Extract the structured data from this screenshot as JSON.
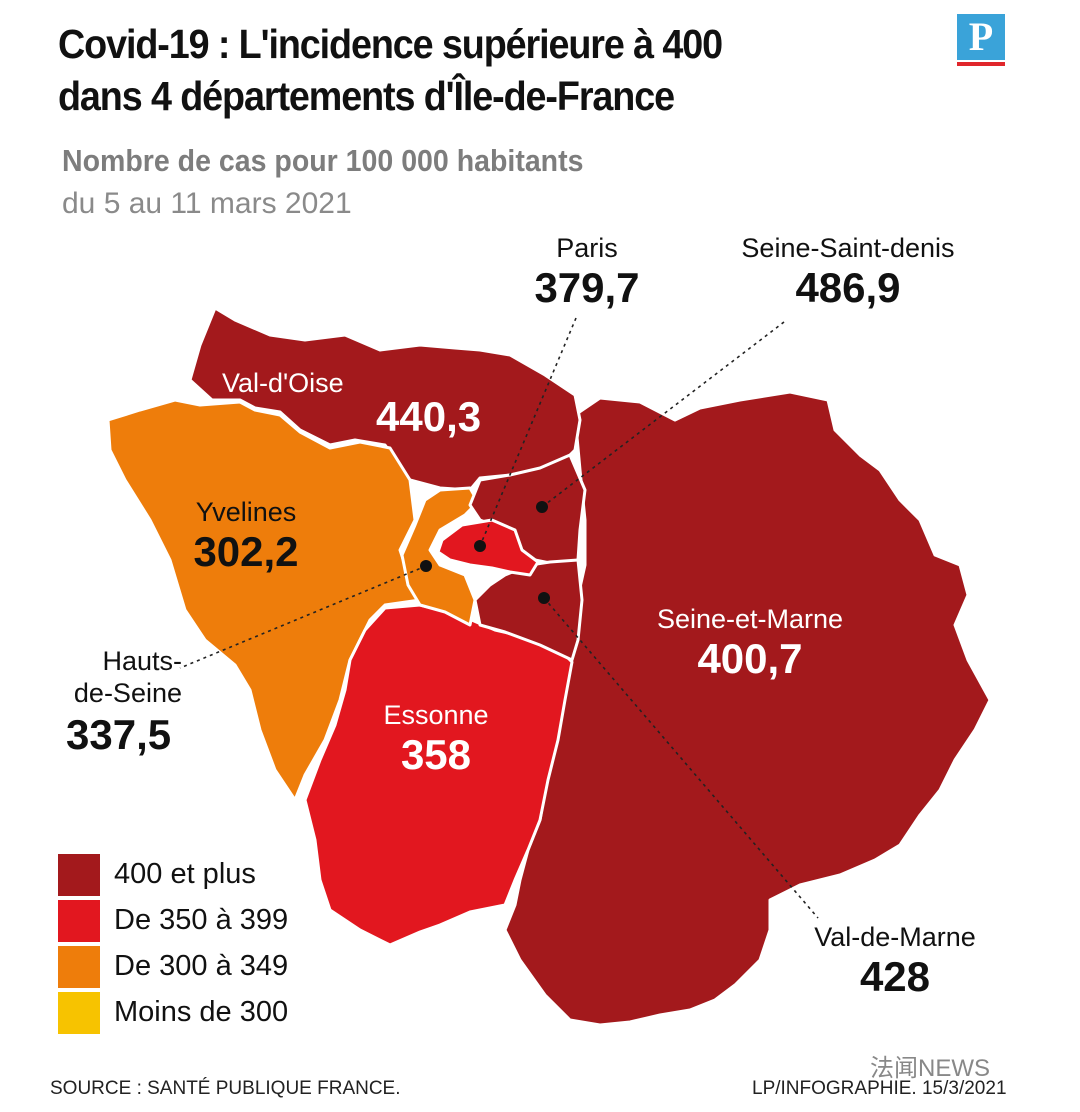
{
  "header": {
    "title_line1": "Covid-19 : L'incidence supérieure à 400",
    "title_line2": "dans 4 départements d'Île-de-France",
    "subtitle": "Nombre de cas pour 100 000 habitants",
    "period": "du 5 au 11 mars 2021",
    "logo_letter": "P"
  },
  "colors": {
    "400_plus": "#a3191c",
    "350_399": "#e2171f",
    "300_349": "#ee7d0b",
    "under_300": "#f7c300"
  },
  "departments": [
    {
      "name": "Paris",
      "value": "379,7",
      "band": "350_399"
    },
    {
      "name": "Seine-Saint-denis",
      "value": "486,9",
      "band": "400_plus"
    },
    {
      "name": "Val-d'Oise",
      "value": "440,3",
      "band": "400_plus"
    },
    {
      "name": "Yvelines",
      "value": "302,2",
      "band": "300_349"
    },
    {
      "name": "Hauts-",
      "name2": "de-Seine",
      "value": "337,5",
      "band": "300_349"
    },
    {
      "name": "Seine-et-Marne",
      "value": "400,7",
      "band": "400_plus"
    },
    {
      "name": "Essonne",
      "value": "358",
      "band": "350_399"
    },
    {
      "name": "Val-de-Marne",
      "value": "428",
      "band": "400_plus"
    }
  ],
  "legend": [
    {
      "label": "400 et plus",
      "color": "#a3191c"
    },
    {
      "label": "De 350 à 399",
      "color": "#e2171f"
    },
    {
      "label": "De 300 à 349",
      "color": "#ee7d0b"
    },
    {
      "label": "Moins de 300",
      "color": "#f7c300"
    }
  ],
  "footer": {
    "source": "SOURCE : SANTÉ PUBLIQUE FRANCE.",
    "credit": "LP/INFOGRAPHIE.  15/3/2021",
    "watermark": "法闻NEWS"
  }
}
